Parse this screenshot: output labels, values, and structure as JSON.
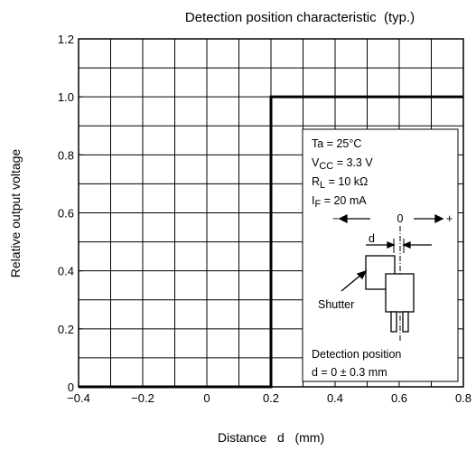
{
  "chart_data": {
    "type": "line",
    "title": "Detection position characteristic  (typ.)",
    "x_label": "Distance   d   (mm)",
    "y_label": "Relative output voltage",
    "x": [
      -0.4,
      0.2,
      0.2,
      0.8
    ],
    "series": [
      {
        "color": "#000000",
        "values": [
          0,
          0,
          1,
          1
        ]
      }
    ],
    "xlim": [
      -0.4,
      0.8
    ],
    "ylim": [
      0,
      1.2
    ],
    "xticks": [
      {
        "value": -0.4,
        "label": "−0.4"
      },
      {
        "value": -0.2,
        "label": "−0.2"
      },
      0,
      0.2,
      0.4,
      0.6,
      0.8
    ],
    "yticks": [
      0,
      0.2,
      0.4,
      0.6,
      0.8,
      {
        "value": 1,
        "label": "1.0"
      },
      1.2
    ],
    "xgrid": [
      -0.4,
      -0.3,
      -0.2,
      -0.1,
      0,
      0.1,
      0.2,
      0.3,
      0.4,
      0.5,
      0.6,
      0.7,
      0.8
    ],
    "ygrid": [
      0,
      0.1,
      0.2,
      0.3,
      0.4,
      0.5,
      0.6,
      0.7,
      0.8,
      0.9,
      1,
      1.1,
      1.2
    ],
    "grid": true,
    "annotation": {
      "conditions": [
        [
          "Ta = 25°C"
        ],
        [
          "V",
          "CC",
          " = 3.3 V"
        ],
        [
          "R",
          "L",
          " = 10 kΩ"
        ],
        [
          "I",
          "F",
          " = 20 mA"
        ]
      ],
      "minus": "−",
      "zero": "0",
      "plus": "+",
      "d": "d",
      "shutter": "Shutter",
      "note": [
        "Detection position",
        "d = 0 ± 0.3 mm"
      ]
    }
  }
}
